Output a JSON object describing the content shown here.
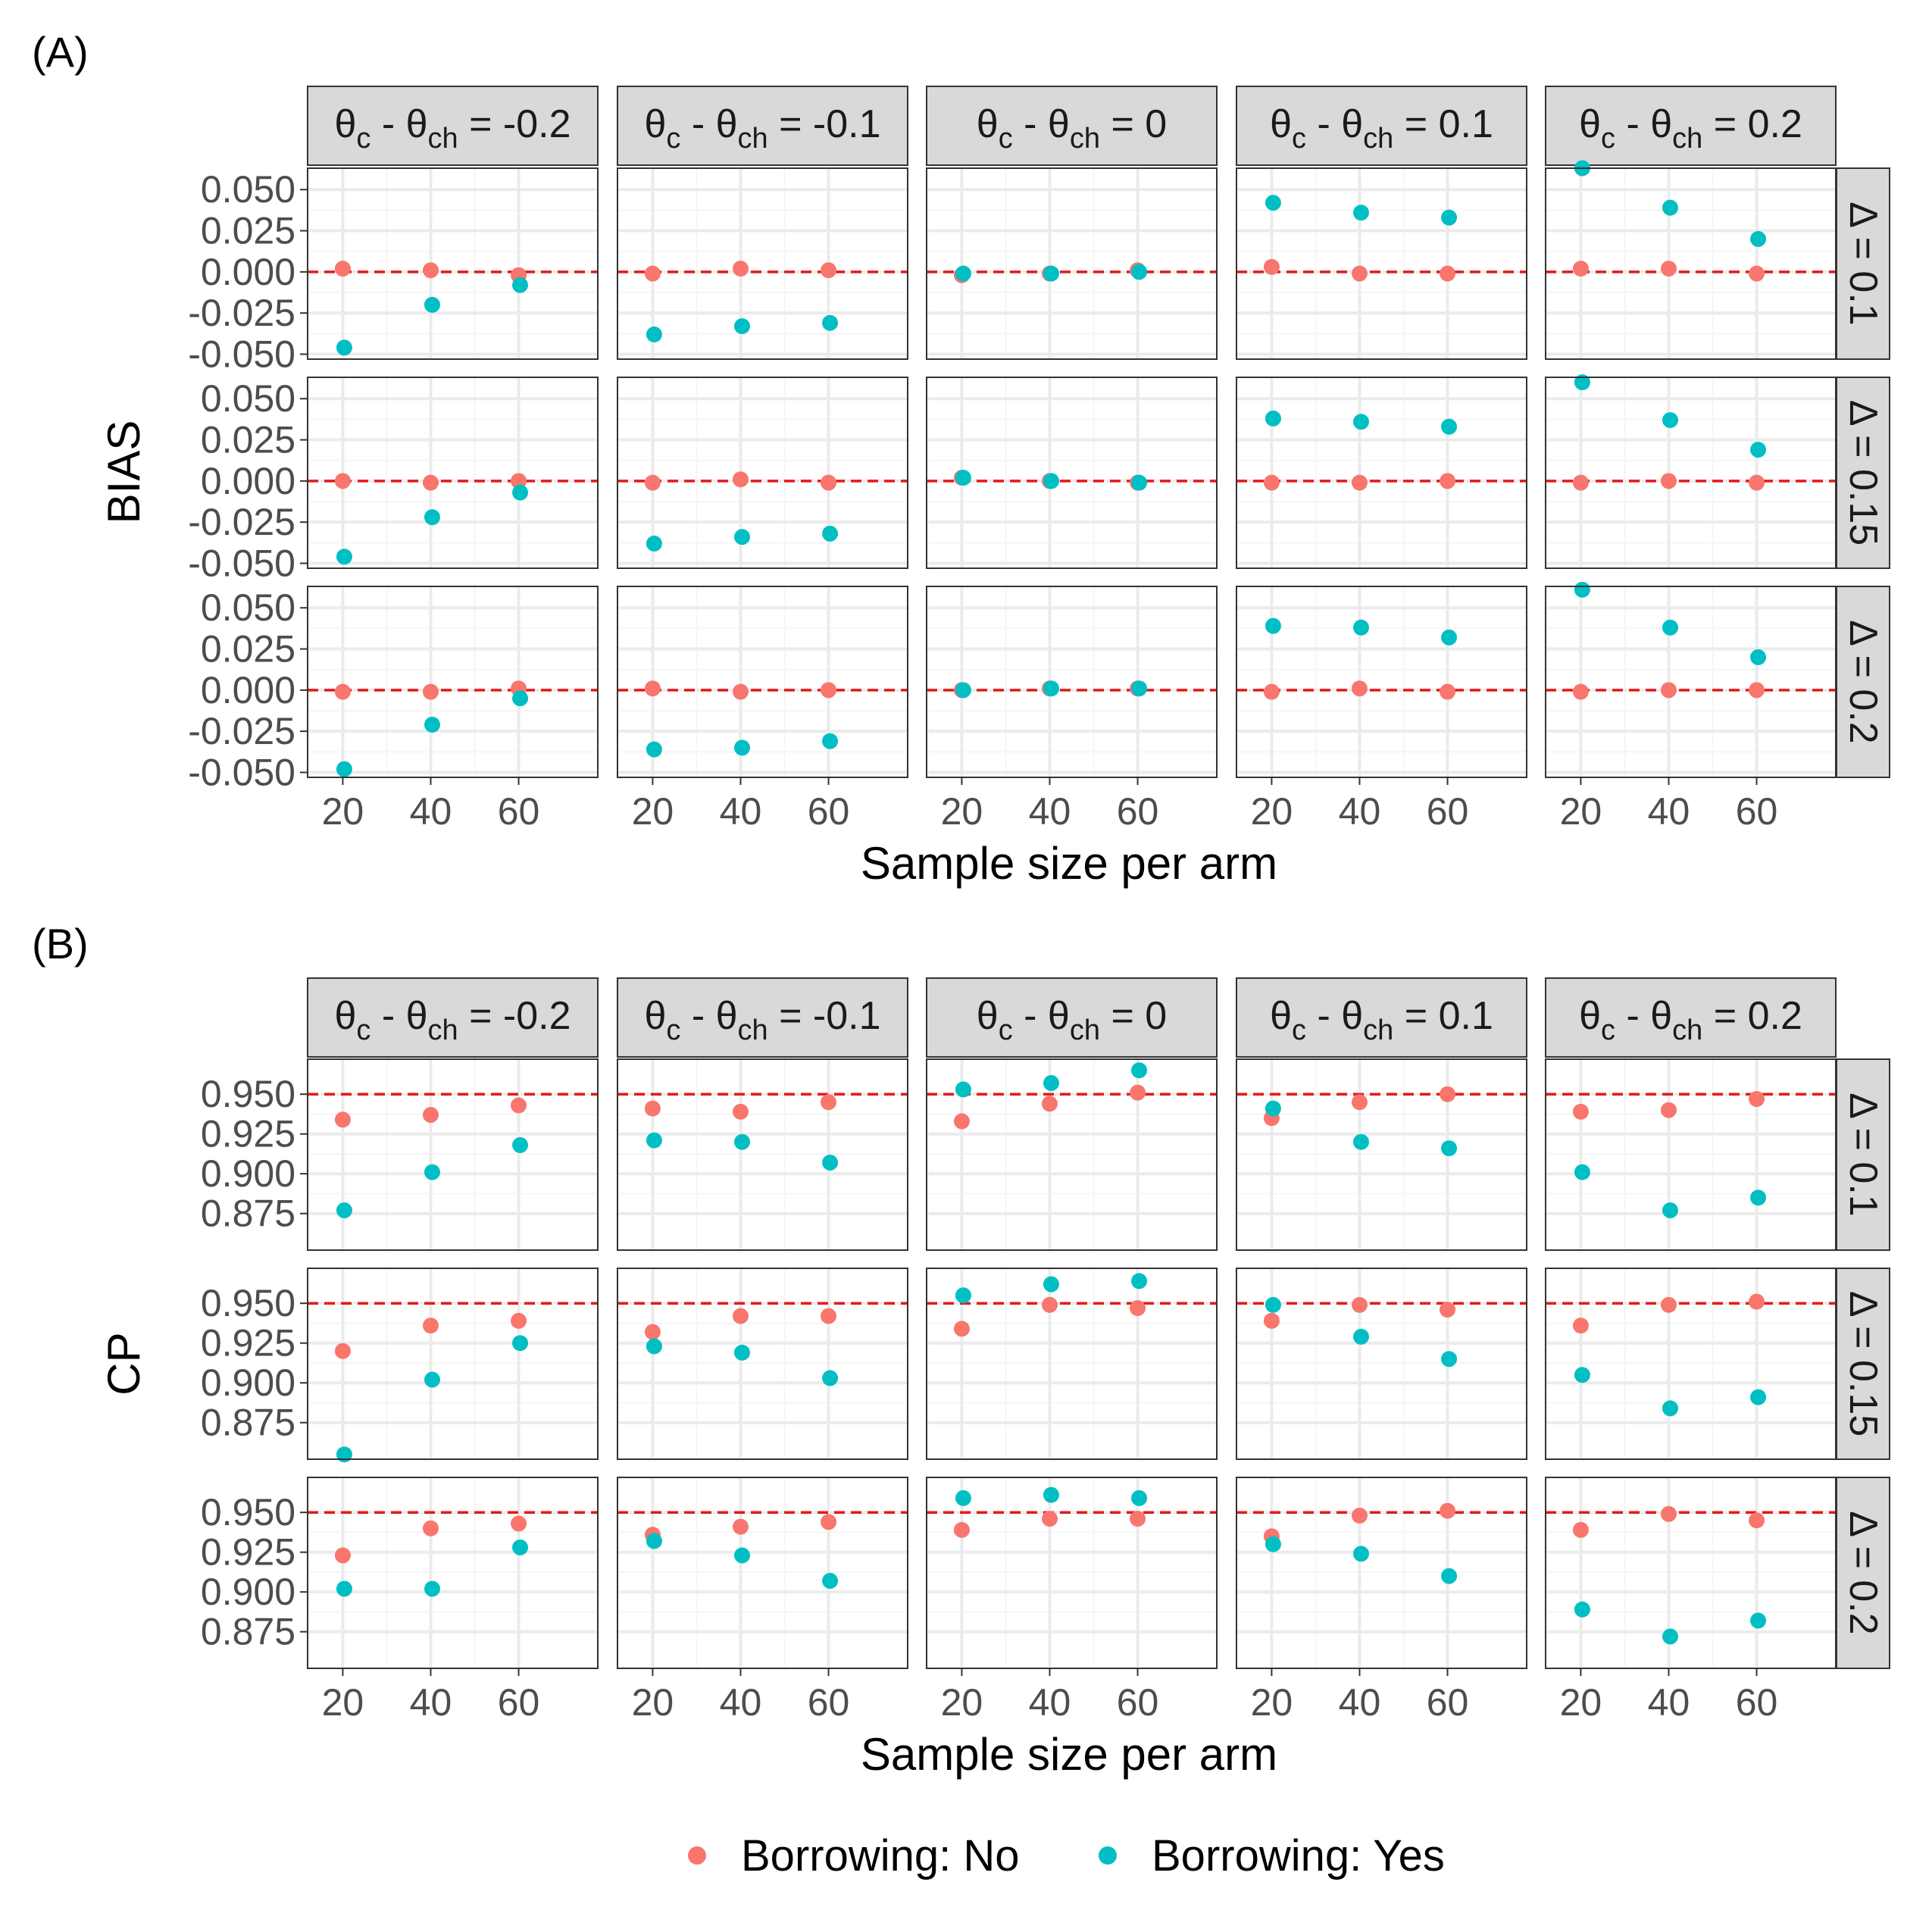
{
  "colors": {
    "no": "#F8766D",
    "yes": "#00BFC4",
    "ref": "#E41A1C",
    "strip_bg": "#D9D9D9",
    "grid_major": "#EBEBEB",
    "grid_minor": "#F5F5F5",
    "border": "#333333",
    "tick_text": "#4D4D4D"
  },
  "shared": {
    "x_ticks": [
      20,
      40,
      60
    ],
    "xlim": [
      12,
      78
    ],
    "col_strips": [
      {
        "pre": "θ",
        "s1": "c",
        "mid": " - θ",
        "s2": "ch",
        "val": " = -0.2"
      },
      {
        "pre": "θ",
        "s1": "c",
        "mid": " - θ",
        "s2": "ch",
        "val": " = -0.1"
      },
      {
        "pre": "θ",
        "s1": "c",
        "mid": " - θ",
        "s2": "ch",
        "val": " = 0"
      },
      {
        "pre": "θ",
        "s1": "c",
        "mid": " - θ",
        "s2": "ch",
        "val": " = 0.1"
      },
      {
        "pre": "θ",
        "s1": "c",
        "mid": " - θ",
        "s2": "ch",
        "val": " = 0.2"
      }
    ],
    "row_strips": [
      "Δ = 0.1",
      "Δ = 0.15",
      "Δ = 0.2"
    ]
  },
  "legend": {
    "items": [
      {
        "label": "Borrowing: No",
        "color": "#F8766D"
      },
      {
        "label": "Borrowing: Yes",
        "color": "#00BFC4"
      }
    ]
  },
  "chart_data": [
    {
      "type": "scatter",
      "panel_label": "(A)",
      "ylabel": "BIAS",
      "xlabel": "Sample size per arm",
      "ylim": [
        -0.053,
        0.063
      ],
      "y_ticks": [
        0.05,
        0.025,
        0.0,
        -0.025,
        -0.05
      ],
      "y_tick_labels": [
        "0.050",
        "0.025",
        "0.000",
        "-0.025",
        "-0.050"
      ],
      "reference_line": 0.0,
      "x": [
        20,
        40,
        60
      ],
      "series": [
        {
          "name": "Borrowing: No",
          "values": [
            [
              [
                0.002,
                0.001,
                -0.002
              ],
              [
                -0.001,
                0.002,
                0.001
              ],
              [
                -0.002,
                -0.001,
                0.001
              ],
              [
                0.003,
                -0.001,
                -0.001
              ],
              [
                0.002,
                0.002,
                -0.001
              ]
            ],
            [
              [
                0.0,
                -0.001,
                0.0
              ],
              [
                -0.001,
                0.001,
                -0.001
              ],
              [
                0.002,
                0.0,
                -0.001
              ],
              [
                -0.001,
                -0.001,
                0.0
              ],
              [
                -0.001,
                0.0,
                -0.001
              ]
            ],
            [
              [
                -0.001,
                -0.001,
                0.001
              ],
              [
                0.001,
                -0.001,
                0.0
              ],
              [
                0.0,
                0.001,
                0.001
              ],
              [
                -0.001,
                0.001,
                -0.001
              ],
              [
                -0.001,
                0.0,
                0.0
              ]
            ]
          ]
        },
        {
          "name": "Borrowing: Yes",
          "values": [
            [
              [
                -0.046,
                -0.02,
                -0.008
              ],
              [
                -0.038,
                -0.033,
                -0.031
              ],
              [
                -0.001,
                -0.001,
                0.0
              ],
              [
                0.042,
                0.036,
                0.033
              ],
              [
                0.063,
                0.039,
                0.02
              ]
            ],
            [
              [
                -0.046,
                -0.022,
                -0.007
              ],
              [
                -0.038,
                -0.034,
                -0.032
              ],
              [
                0.002,
                0.0,
                -0.001
              ],
              [
                0.038,
                0.036,
                0.033
              ],
              [
                0.06,
                0.037,
                0.019
              ]
            ],
            [
              [
                -0.048,
                -0.021,
                -0.005
              ],
              [
                -0.036,
                -0.035,
                -0.031
              ],
              [
                0.0,
                0.001,
                0.001
              ],
              [
                0.039,
                0.038,
                0.032
              ],
              [
                0.061,
                0.038,
                0.02
              ]
            ]
          ]
        }
      ]
    },
    {
      "type": "scatter",
      "panel_label": "(B)",
      "ylabel": "CP",
      "xlabel": "Sample size per arm",
      "ylim": [
        0.852,
        0.972
      ],
      "y_ticks": [
        0.95,
        0.925,
        0.9,
        0.875
      ],
      "y_tick_labels": [
        "0.950",
        "0.925",
        "0.900",
        "0.875"
      ],
      "reference_line": 0.95,
      "x": [
        20,
        40,
        60
      ],
      "series": [
        {
          "name": "Borrowing: No",
          "values": [
            [
              [
                0.934,
                0.937,
                0.943
              ],
              [
                0.941,
                0.939,
                0.945
              ],
              [
                0.933,
                0.944,
                0.951
              ],
              [
                0.935,
                0.945,
                0.95
              ],
              [
                0.939,
                0.94,
                0.947
              ]
            ],
            [
              [
                0.92,
                0.936,
                0.939
              ],
              [
                0.932,
                0.942,
                0.942
              ],
              [
                0.934,
                0.949,
                0.947
              ],
              [
                0.939,
                0.949,
                0.946
              ],
              [
                0.936,
                0.949,
                0.951
              ]
            ],
            [
              [
                0.923,
                0.94,
                0.943
              ],
              [
                0.936,
                0.941,
                0.944
              ],
              [
                0.939,
                0.946,
                0.946
              ],
              [
                0.935,
                0.948,
                0.951
              ],
              [
                0.939,
                0.949,
                0.945
              ]
            ]
          ]
        },
        {
          "name": "Borrowing: Yes",
          "values": [
            [
              [
                0.877,
                0.901,
                0.918
              ],
              [
                0.921,
                0.92,
                0.907
              ],
              [
                0.953,
                0.957,
                0.965
              ],
              [
                0.941,
                0.92,
                0.916
              ],
              [
                0.901,
                0.877,
                0.885
              ]
            ],
            [
              [
                0.855,
                0.902,
                0.925
              ],
              [
                0.923,
                0.919,
                0.903
              ],
              [
                0.955,
                0.962,
                0.964
              ],
              [
                0.949,
                0.929,
                0.915
              ],
              [
                0.905,
                0.884,
                0.891
              ]
            ],
            [
              [
                0.902,
                0.902,
                0.928
              ],
              [
                0.932,
                0.923,
                0.907
              ],
              [
                0.959,
                0.961,
                0.959
              ],
              [
                0.93,
                0.924,
                0.91
              ],
              [
                0.889,
                0.872,
                0.882
              ]
            ]
          ]
        }
      ]
    }
  ]
}
